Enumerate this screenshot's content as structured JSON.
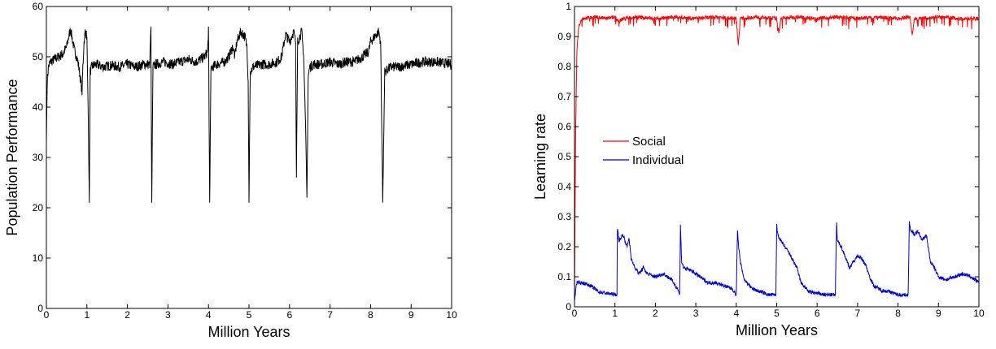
{
  "chart_data": [
    {
      "type": "line",
      "xlabel": "Million Years",
      "ylabel": "Population Performance",
      "xlim": [
        0,
        10
      ],
      "ylim": [
        0,
        60
      ],
      "x_ticks": [
        0,
        1,
        2,
        3,
        4,
        5,
        6,
        7,
        8,
        9,
        10
      ],
      "y_ticks": [
        0,
        10,
        20,
        30,
        40,
        50,
        60
      ],
      "grid": false,
      "series": [
        {
          "color": "#000000",
          "x": [
            0.0,
            0.02,
            0.05,
            0.1,
            0.2,
            0.3,
            0.4,
            0.5,
            0.55,
            0.6,
            0.65,
            0.7,
            0.75,
            0.8,
            0.85,
            0.88,
            0.9,
            0.93,
            0.96,
            1.0,
            1.03,
            1.06,
            1.08,
            1.12,
            1.2,
            1.4,
            1.6,
            1.8,
            2.0,
            2.2,
            2.4,
            2.55,
            2.58,
            2.6,
            2.63,
            2.7,
            2.9,
            3.1,
            3.3,
            3.5,
            3.7,
            3.9,
            3.98,
            4.0,
            4.03,
            4.06,
            4.1,
            4.2,
            4.4,
            4.5,
            4.6,
            4.65,
            4.7,
            4.8,
            4.9,
            4.95,
            4.98,
            5.0,
            5.03,
            5.1,
            5.3,
            5.5,
            5.7,
            5.8,
            5.85,
            5.9,
            6.0,
            6.1,
            6.15,
            6.17,
            6.2,
            6.3,
            6.35,
            6.4,
            6.43,
            6.46,
            6.5,
            6.6,
            6.8,
            7.0,
            7.2,
            7.4,
            7.6,
            7.8,
            7.95,
            8.0,
            8.1,
            8.2,
            8.25,
            8.27,
            8.3,
            8.35,
            8.5,
            8.7,
            9.0,
            9.3,
            9.6,
            10.0
          ],
          "y": [
            33,
            45,
            48,
            49,
            49.5,
            50,
            50.5,
            52,
            54,
            55.5,
            53,
            51,
            50,
            48,
            45,
            43,
            48,
            53,
            55,
            54,
            40,
            21,
            47,
            48,
            48.5,
            48,
            48.3,
            48,
            48.5,
            48,
            48.5,
            48.5,
            56,
            21,
            48,
            48.5,
            49,
            48.5,
            49,
            49.5,
            49,
            50,
            51,
            56,
            21,
            47,
            48,
            48.5,
            49,
            50,
            52,
            50,
            53,
            55,
            54,
            52,
            45,
            21,
            47,
            48,
            48.5,
            48.5,
            49,
            50,
            52,
            54.5,
            53,
            55,
            53,
            26,
            53,
            55,
            50,
            35,
            22,
            46,
            48,
            48.5,
            48.5,
            49,
            48.5,
            49,
            49,
            50,
            51,
            53,
            54,
            55,
            53,
            40,
            21,
            47,
            48,
            48,
            48.5,
            49,
            49,
            48.5
          ]
        }
      ]
    },
    {
      "type": "line",
      "xlabel": "Million Years",
      "ylabel": "Learning rate",
      "xlim": [
        0,
        10
      ],
      "ylim": [
        0,
        1
      ],
      "x_ticks": [
        0,
        1,
        2,
        3,
        4,
        5,
        6,
        7,
        8,
        9,
        10
      ],
      "y_ticks": [
        0,
        0.1,
        0.2,
        0.3,
        0.4,
        0.5,
        0.6,
        0.7,
        0.8,
        0.9,
        1
      ],
      "grid": false,
      "legend_position": "center-left",
      "series": [
        {
          "name": "Social",
          "color": "#ff0000",
          "x": [
            0.0,
            0.03,
            0.06,
            0.1,
            0.15,
            0.2,
            0.5,
            0.8,
            1.0,
            1.1,
            1.2,
            1.5,
            2.0,
            2.5,
            3.0,
            3.5,
            4.0,
            4.05,
            4.1,
            4.5,
            5.0,
            5.05,
            5.1,
            5.5,
            6.0,
            6.5,
            7.0,
            7.5,
            8.0,
            8.3,
            8.35,
            8.4,
            9.0,
            9.5,
            10.0
          ],
          "y": [
            0.02,
            0.6,
            0.85,
            0.93,
            0.95,
            0.96,
            0.965,
            0.96,
            0.965,
            0.95,
            0.96,
            0.965,
            0.96,
            0.965,
            0.96,
            0.965,
            0.96,
            0.87,
            0.96,
            0.965,
            0.96,
            0.91,
            0.96,
            0.965,
            0.96,
            0.965,
            0.96,
            0.965,
            0.96,
            0.965,
            0.9,
            0.96,
            0.965,
            0.96,
            0.96
          ]
        },
        {
          "name": "Individual",
          "color": "#0000cc",
          "x": [
            0.0,
            0.05,
            0.2,
            0.4,
            0.6,
            0.8,
            1.05,
            1.06,
            1.1,
            1.2,
            1.3,
            1.35,
            1.4,
            1.5,
            1.6,
            1.7,
            1.8,
            2.0,
            2.2,
            2.4,
            2.55,
            2.6,
            2.62,
            2.65,
            2.7,
            2.9,
            3.1,
            3.3,
            3.5,
            3.7,
            3.9,
            4.0,
            4.03,
            4.06,
            4.1,
            4.2,
            4.4,
            4.6,
            4.8,
            4.98,
            5.0,
            5.03,
            5.1,
            5.3,
            5.5,
            5.6,
            5.8,
            6.0,
            6.2,
            6.45,
            6.48,
            6.5,
            6.6,
            6.8,
            6.9,
            7.0,
            7.1,
            7.2,
            7.3,
            7.4,
            7.6,
            7.8,
            8.0,
            8.25,
            8.28,
            8.3,
            8.4,
            8.5,
            8.6,
            8.7,
            8.8,
            8.9,
            9.0,
            9.2,
            9.4,
            9.6,
            9.8,
            10.0
          ],
          "y": [
            0.02,
            0.08,
            0.08,
            0.07,
            0.05,
            0.045,
            0.04,
            0.26,
            0.22,
            0.24,
            0.2,
            0.23,
            0.16,
            0.13,
            0.11,
            0.13,
            0.11,
            0.1,
            0.11,
            0.09,
            0.06,
            0.04,
            0.27,
            0.15,
            0.13,
            0.12,
            0.1,
            0.08,
            0.08,
            0.07,
            0.06,
            0.04,
            0.25,
            0.2,
            0.15,
            0.09,
            0.06,
            0.05,
            0.04,
            0.04,
            0.27,
            0.24,
            0.22,
            0.18,
            0.13,
            0.08,
            0.05,
            0.045,
            0.04,
            0.04,
            0.28,
            0.22,
            0.2,
            0.13,
            0.15,
            0.17,
            0.16,
            0.14,
            0.1,
            0.07,
            0.055,
            0.05,
            0.04,
            0.04,
            0.28,
            0.26,
            0.24,
            0.25,
            0.22,
            0.24,
            0.15,
            0.13,
            0.1,
            0.09,
            0.1,
            0.11,
            0.1,
            0.08
          ]
        }
      ]
    }
  ]
}
